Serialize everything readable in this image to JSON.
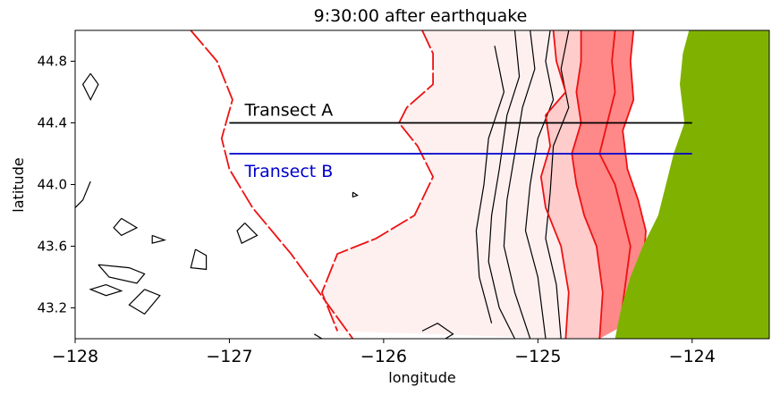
{
  "chart_data": {
    "type": "contour-map",
    "title": "9:30:00 after earthquake",
    "xlabel": "longitude",
    "ylabel": "latitude",
    "xlim": [
      -128,
      -123.5
    ],
    "ylim": [
      43.0,
      45.0
    ],
    "x_ticks": [
      -128,
      -127,
      -126,
      -125,
      -124
    ],
    "x_tick_labels": [
      "−128",
      "−127",
      "−126",
      "−125",
      "−124"
    ],
    "y_ticks": [
      43.2,
      43.6,
      44.0,
      44.4,
      44.8
    ],
    "y_tick_labels": [
      "43.2",
      "43.6",
      "44.0",
      "44.4",
      "44.8"
    ],
    "grid": false,
    "colors": {
      "land": "#7fb200",
      "wave_contour": "#ee1111",
      "bathymetry_contour": "#000000",
      "transect_a": "#000000",
      "transect_b": "#0000cc",
      "fill_light": "#fff0f0",
      "fill_mid": "#ffcccc",
      "fill_strong": "#ff8888"
    },
    "transects": [
      {
        "name": "Transect A",
        "lat": 44.4,
        "lon_start": -127.0,
        "lon_end": -124.0,
        "color": "#000000"
      },
      {
        "name": "Transect B",
        "lat": 44.2,
        "lon_start": -127.0,
        "lon_end": -124.0,
        "color": "#0000cc"
      }
    ],
    "land_edge": [
      [
        -124.02,
        45.0
      ],
      [
        -124.06,
        44.85
      ],
      [
        -124.08,
        44.65
      ],
      [
        -124.05,
        44.4
      ],
      [
        -124.12,
        44.2
      ],
      [
        -124.17,
        44.0
      ],
      [
        -124.22,
        43.8
      ],
      [
        -124.32,
        43.6
      ],
      [
        -124.4,
        43.4
      ],
      [
        -124.46,
        43.2
      ],
      [
        -124.5,
        43.0
      ]
    ],
    "wave_contours": [
      [
        [
          -127.25,
          45.0
        ],
        [
          -127.08,
          44.8
        ],
        [
          -126.98,
          44.55
        ],
        [
          -127.05,
          44.3
        ],
        [
          -127.0,
          44.1
        ],
        [
          -126.85,
          43.85
        ],
        [
          -126.6,
          43.55
        ],
        [
          -126.2,
          43.0
        ]
      ],
      [
        [
          -125.75,
          45.0
        ],
        [
          -125.68,
          44.85
        ],
        [
          -125.68,
          44.65
        ],
        [
          -125.85,
          44.5
        ],
        [
          -125.9,
          44.4
        ],
        [
          -125.78,
          44.25
        ],
        [
          -125.68,
          44.05
        ],
        [
          -125.8,
          43.8
        ],
        [
          -126.05,
          43.65
        ],
        [
          -126.3,
          43.55
        ],
        [
          -126.4,
          43.3
        ],
        [
          -126.3,
          43.05
        ]
      ],
      [
        [
          -124.9,
          45.0
        ],
        [
          -124.88,
          44.8
        ],
        [
          -124.82,
          44.6
        ],
        [
          -124.95,
          44.45
        ],
        [
          -124.92,
          44.25
        ],
        [
          -124.98,
          44.05
        ],
        [
          -124.95,
          43.85
        ],
        [
          -124.85,
          43.6
        ],
        [
          -124.8,
          43.3
        ],
        [
          -124.82,
          43.0
        ]
      ],
      [
        [
          -124.72,
          45.0
        ],
        [
          -124.72,
          44.8
        ],
        [
          -124.75,
          44.6
        ],
        [
          -124.72,
          44.4
        ],
        [
          -124.78,
          44.2
        ],
        [
          -124.75,
          44.0
        ],
        [
          -124.7,
          43.8
        ],
        [
          -124.62,
          43.6
        ],
        [
          -124.58,
          43.3
        ],
        [
          -124.6,
          43.0
        ]
      ],
      [
        [
          -124.5,
          45.0
        ],
        [
          -124.52,
          44.8
        ],
        [
          -124.5,
          44.6
        ],
        [
          -124.55,
          44.4
        ],
        [
          -124.6,
          44.2
        ],
        [
          -124.5,
          44.0
        ],
        [
          -124.45,
          43.8
        ],
        [
          -124.4,
          43.6
        ],
        [
          -124.44,
          43.3
        ],
        [
          -124.48,
          43.0
        ]
      ],
      [
        [
          -124.38,
          45.0
        ],
        [
          -124.4,
          44.8
        ],
        [
          -124.38,
          44.55
        ],
        [
          -124.45,
          44.35
        ],
        [
          -124.42,
          44.1
        ],
        [
          -124.35,
          43.9
        ],
        [
          -124.3,
          43.7
        ],
        [
          -124.32,
          43.4
        ],
        [
          -124.42,
          43.1
        ]
      ]
    ],
    "bathymetry_contours": [
      [
        [
          -125.15,
          45.0
        ],
        [
          -125.12,
          44.7
        ],
        [
          -125.2,
          44.45
        ],
        [
          -125.25,
          44.1
        ],
        [
          -125.3,
          43.8
        ],
        [
          -125.32,
          43.5
        ],
        [
          -125.25,
          43.2
        ],
        [
          -125.15,
          43.0
        ]
      ],
      [
        [
          -125.05,
          45.0
        ],
        [
          -125.02,
          44.75
        ],
        [
          -125.1,
          44.5
        ],
        [
          -125.15,
          44.2
        ],
        [
          -125.2,
          43.9
        ],
        [
          -125.22,
          43.6
        ],
        [
          -125.15,
          43.3
        ],
        [
          -125.05,
          43.0
        ]
      ],
      [
        [
          -124.92,
          45.0
        ],
        [
          -124.95,
          44.8
        ],
        [
          -124.9,
          44.55
        ],
        [
          -125.0,
          44.3
        ],
        [
          -125.05,
          44.0
        ],
        [
          -125.08,
          43.7
        ],
        [
          -125.0,
          43.4
        ],
        [
          -124.95,
          43.0
        ]
      ],
      [
        [
          -124.8,
          45.0
        ],
        [
          -124.85,
          44.75
        ],
        [
          -124.8,
          44.5
        ],
        [
          -124.9,
          44.25
        ],
        [
          -124.92,
          43.95
        ],
        [
          -124.95,
          43.65
        ],
        [
          -124.88,
          43.35
        ],
        [
          -124.85,
          43.0
        ]
      ],
      [
        [
          -125.28,
          44.9
        ],
        [
          -125.22,
          44.6
        ],
        [
          -125.32,
          44.3
        ],
        [
          -125.35,
          44.0
        ],
        [
          -125.4,
          43.7
        ],
        [
          -125.38,
          43.4
        ],
        [
          -125.3,
          43.1
        ]
      ]
    ],
    "bathymetry_islands": [
      [
        [
          -127.9,
          44.72
        ],
        [
          -127.85,
          44.65
        ],
        [
          -127.9,
          44.55
        ],
        [
          -127.95,
          44.65
        ],
        [
          -127.9,
          44.72
        ]
      ],
      [
        [
          -127.9,
          44.02
        ],
        [
          -127.95,
          43.9
        ],
        [
          -128.0,
          43.85
        ]
      ],
      [
        [
          -127.7,
          43.78
        ],
        [
          -127.6,
          43.72
        ],
        [
          -127.7,
          43.67
        ],
        [
          -127.75,
          43.72
        ],
        [
          -127.7,
          43.78
        ]
      ],
      [
        [
          -127.5,
          43.67
        ],
        [
          -127.42,
          43.64
        ],
        [
          -127.5,
          43.62
        ],
        [
          -127.5,
          43.67
        ]
      ],
      [
        [
          -127.85,
          43.48
        ],
        [
          -127.65,
          43.46
        ],
        [
          -127.55,
          43.42
        ],
        [
          -127.6,
          43.36
        ],
        [
          -127.78,
          43.4
        ],
        [
          -127.85,
          43.48
        ]
      ],
      [
        [
          -127.8,
          43.35
        ],
        [
          -127.7,
          43.31
        ],
        [
          -127.8,
          43.28
        ],
        [
          -127.9,
          43.32
        ],
        [
          -127.8,
          43.35
        ]
      ],
      [
        [
          -127.55,
          43.32
        ],
        [
          -127.45,
          43.28
        ],
        [
          -127.55,
          43.16
        ],
        [
          -127.65,
          43.22
        ],
        [
          -127.55,
          43.32
        ]
      ],
      [
        [
          -127.22,
          43.58
        ],
        [
          -127.15,
          43.54
        ],
        [
          -127.15,
          43.45
        ],
        [
          -127.25,
          43.46
        ],
        [
          -127.22,
          43.58
        ]
      ],
      [
        [
          -126.9,
          43.75
        ],
        [
          -126.82,
          43.67
        ],
        [
          -126.92,
          43.62
        ],
        [
          -126.95,
          43.7
        ],
        [
          -126.9,
          43.75
        ]
      ],
      [
        [
          -126.2,
          43.95
        ],
        [
          -126.17,
          43.93
        ],
        [
          -126.2,
          43.92
        ],
        [
          -126.2,
          43.95
        ]
      ],
      [
        [
          -125.75,
          43.05
        ],
        [
          -125.65,
          43.1
        ],
        [
          -125.55,
          43.03
        ],
        [
          -125.6,
          43.0
        ]
      ],
      [
        [
          -126.45,
          43.03
        ],
        [
          -126.4,
          43.0
        ]
      ]
    ]
  }
}
